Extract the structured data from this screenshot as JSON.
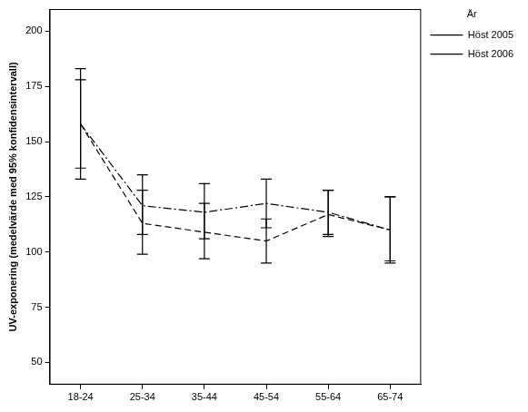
{
  "chart_data": {
    "type": "line",
    "y_label": "UV-exponering (medelvärde med 95% konfidensintervall)",
    "legend_title": "År",
    "legend": "upper right",
    "grid": false,
    "categories": [
      "18-24",
      "25-34",
      "35-44",
      "45-54",
      "55-64",
      "65-74"
    ],
    "ylim": [
      40,
      210
    ],
    "yticks": [
      50,
      75,
      100,
      125,
      150,
      175,
      200
    ],
    "series": [
      {
        "name": "Höst 2005",
        "color": "#000000",
        "line_style": "dashdot",
        "marker": "none",
        "values": [
          158,
          121,
          118,
          122,
          118,
          110
        ],
        "ci": [
          [
            138,
            178
          ],
          [
            108,
            135
          ],
          [
            106,
            131
          ],
          [
            111,
            133
          ],
          [
            108,
            128
          ],
          [
            96,
            125
          ]
        ]
      },
      {
        "name": "Höst 2006",
        "color": "#000000",
        "line_style": "dashed",
        "marker": "none",
        "values": [
          158,
          113,
          109,
          105,
          117,
          110
        ],
        "ci": [
          [
            133,
            183
          ],
          [
            99,
            128
          ],
          [
            97,
            122
          ],
          [
            95,
            115
          ],
          [
            107,
            128
          ],
          [
            95,
            125
          ]
        ]
      }
    ]
  }
}
